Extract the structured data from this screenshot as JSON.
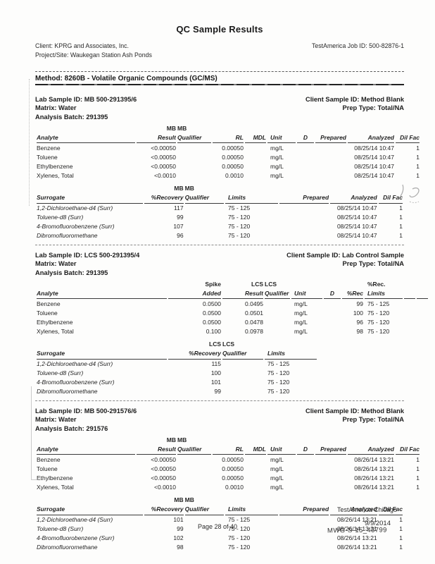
{
  "page": {
    "title": "QC Sample Results",
    "client_line": "Client: KPRG and Associates, Inc.",
    "job_line": "TestAmerica Job ID: 500-82876-1",
    "project_line": "Project/Site: Waukegan Station Ash Ponds",
    "method_line": "Method: 8260B - Volatile Organic Compounds (GC/MS)"
  },
  "sections": [
    {
      "id_left": [
        "Lab Sample ID: MB 500-291395/6",
        "Matrix: Water",
        "Analysis Batch: 291395"
      ],
      "id_right": [
        "Client Sample ID: Method Blank",
        "Prep Type: Total/NA"
      ],
      "tables": [
        {
          "kind": "mb-analyte",
          "head_top": [
            "",
            "MB",
            "MB",
            "",
            "",
            "",
            "",
            "",
            "",
            ""
          ],
          "head": [
            "Analyte",
            "Result",
            "Qualifier",
            "RL",
            "MDL",
            "Unit",
            "D",
            "Prepared",
            "Analyzed",
            "Dil Fac"
          ],
          "rows": [
            [
              "Benzene",
              "<0.00050",
              "",
              "0.00050",
              "",
              "mg/L",
              "",
              "",
              "08/25/14 10:47",
              "1"
            ],
            [
              "Toluene",
              "<0.00050",
              "",
              "0.00050",
              "",
              "mg/L",
              "",
              "",
              "08/25/14 10:47",
              "1"
            ],
            [
              "Ethylbenzene",
              "<0.00050",
              "",
              "0.00050",
              "",
              "mg/L",
              "",
              "",
              "08/25/14 10:47",
              "1"
            ],
            [
              "Xylenes, Total",
              "<0.0010",
              "",
              "0.0010",
              "",
              "mg/L",
              "",
              "",
              "08/25/14 10:47",
              "1"
            ]
          ]
        },
        {
          "kind": "mb-surr",
          "head_top": [
            "",
            "MB",
            "MB",
            "",
            "",
            "",
            ""
          ],
          "head": [
            "Surrogate",
            "%Recovery",
            "Qualifier",
            "Limits",
            "Prepared",
            "Analyzed",
            "Dil Fac"
          ],
          "rows": [
            [
              "1,2-Dichloroethane-d4 (Surr)",
              "117",
              "",
              "75 - 125",
              "",
              "08/25/14 10:47",
              "1"
            ],
            [
              "Toluene-d8 (Surr)",
              "99",
              "",
              "75 - 120",
              "",
              "08/25/14 10:47",
              "1"
            ],
            [
              "4-Bromofluorobenzene (Surr)",
              "107",
              "",
              "75 - 120",
              "",
              "08/25/14 10:47",
              "1"
            ],
            [
              "Dibromofluoromethane",
              "96",
              "",
              "75 - 120",
              "",
              "08/25/14 10:47",
              "1"
            ]
          ]
        }
      ]
    },
    {
      "id_left": [
        "Lab Sample ID: LCS 500-291395/4",
        "Matrix: Water",
        "Analysis Batch: 291395"
      ],
      "id_right": [
        "Client Sample ID: Lab Control Sample",
        "Prep Type: Total/NA"
      ],
      "tables": [
        {
          "kind": "lcs-analyte",
          "head_top": [
            "",
            "Spike",
            "LCS",
            "LCS",
            "",
            "",
            "",
            "%Rec.",
            "",
            ""
          ],
          "head": [
            "Analyte",
            "Added",
            "Result",
            "Qualifier",
            "Unit",
            "D",
            "%Rec",
            "Limits",
            "",
            ""
          ],
          "rows": [
            [
              "Benzene",
              "0.0500",
              "0.0495",
              "",
              "mg/L",
              "",
              "99",
              "75 - 125",
              "",
              ""
            ],
            [
              "Toluene",
              "0.0500",
              "0.0501",
              "",
              "mg/L",
              "",
              "100",
              "75 - 120",
              "",
              ""
            ],
            [
              "Ethylbenzene",
              "0.0500",
              "0.0478",
              "",
              "mg/L",
              "",
              "96",
              "75 - 120",
              "",
              ""
            ],
            [
              "Xylenes, Total",
              "0.100",
              "0.0978",
              "",
              "mg/L",
              "",
              "98",
              "75 - 120",
              "",
              ""
            ]
          ]
        },
        {
          "kind": "lcs-surr",
          "head_top": [
            "",
            "LCS",
            "LCS",
            ""
          ],
          "head": [
            "Surrogate",
            "%Recovery",
            "Qualifier",
            "Limits"
          ],
          "rows": [
            [
              "1,2-Dichloroethane-d4 (Surr)",
              "115",
              "",
              "75 - 125"
            ],
            [
              "Toluene-d8 (Surr)",
              "100",
              "",
              "75 - 120"
            ],
            [
              "4-Bromofluorobenzene (Surr)",
              "101",
              "",
              "75 - 120"
            ],
            [
              "Dibromofluoromethane",
              "99",
              "",
              "75 - 120"
            ]
          ]
        }
      ]
    },
    {
      "id_left": [
        "Lab Sample ID: MB 500-291576/6",
        "Matrix: Water",
        "Analysis Batch: 291576"
      ],
      "id_right": [
        "Client Sample ID: Method Blank",
        "Prep Type: Total/NA"
      ],
      "tables": [
        {
          "kind": "mb-analyte",
          "head_top": [
            "",
            "MB",
            "MB",
            "",
            "",
            "",
            "",
            "",
            "",
            ""
          ],
          "head": [
            "Analyte",
            "Result",
            "Qualifier",
            "RL",
            "MDL",
            "Unit",
            "D",
            "Prepared",
            "Analyzed",
            "Dil Fac"
          ],
          "rows": [
            [
              "Benzene",
              "<0.00050",
              "",
              "0.00050",
              "",
              "mg/L",
              "",
              "",
              "08/26/14 13:21",
              "1"
            ],
            [
              "Toluene",
              "<0.00050",
              "",
              "0.00050",
              "",
              "mg/L",
              "",
              "",
              "08/26/14 13:21",
              "1"
            ],
            [
              "Ethylbenzene",
              "<0.00050",
              "",
              "0.00050",
              "",
              "mg/L",
              "",
              "",
              "08/26/14 13:21",
              "1"
            ],
            [
              "Xylenes, Total",
              "<0.0010",
              "",
              "0.0010",
              "",
              "mg/L",
              "",
              "",
              "08/26/14 13:21",
              "1"
            ]
          ]
        },
        {
          "kind": "mb-surr",
          "head_top": [
            "",
            "MB",
            "MB",
            "",
            "",
            "",
            ""
          ],
          "head": [
            "Surrogate",
            "%Recovery",
            "Qualifier",
            "Limits",
            "Prepared",
            "Analyzed",
            "Dil Fac"
          ],
          "rows": [
            [
              "1,2-Dichloroethane-d4 (Surr)",
              "101",
              "",
              "75 - 125",
              "",
              "08/26/14 13:21",
              "1"
            ],
            [
              "Toluene-d8 (Surr)",
              "99",
              "",
              "75 - 120",
              "",
              "08/26/14 13:21",
              "1"
            ],
            [
              "4-Bromofluorobenzene (Surr)",
              "102",
              "",
              "75 - 120",
              "",
              "08/26/14 13:21",
              "1"
            ],
            [
              "Dibromofluoromethane",
              "98",
              "",
              "75 - 120",
              "",
              "08/26/14 13:21",
              "1"
            ]
          ]
        }
      ]
    }
  ],
  "footer": {
    "lab_name": "TestAmerica Chicago",
    "page_text": "Page 28 of 40",
    "date_text": "9/9/2014",
    "stamp_text": "MWG-S-15_43799"
  }
}
